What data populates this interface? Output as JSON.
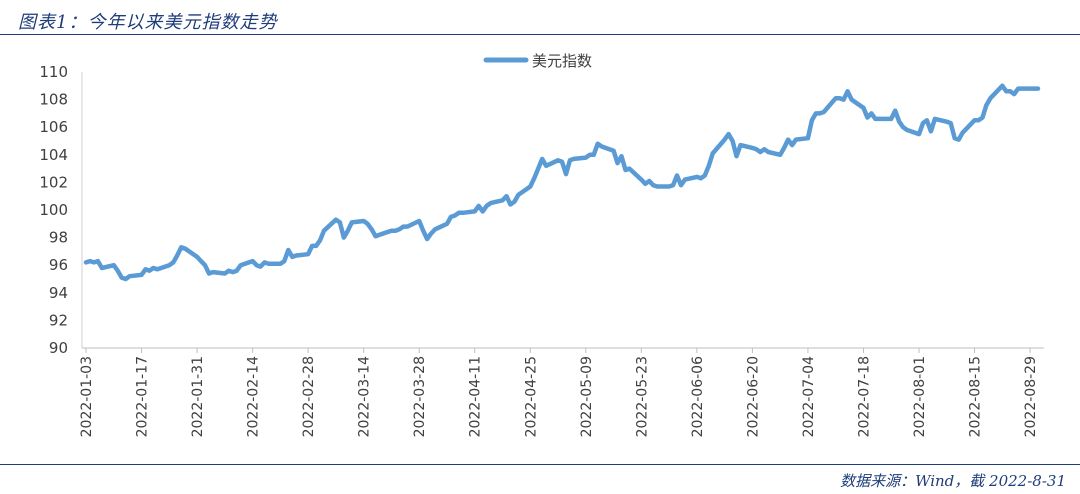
{
  "header": {
    "title": "图表1：今年以来美元指数走势"
  },
  "footer": {
    "source": "数据来源：Wind，截 2022-8-31"
  },
  "chart_data": {
    "type": "line",
    "title": "",
    "xlabel": "",
    "ylabel": "",
    "ylim": [
      90,
      110
    ],
    "yticks": [
      90,
      92,
      94,
      96,
      98,
      100,
      102,
      104,
      106,
      108,
      110
    ],
    "xticks": [
      "2022-01-03",
      "2022-01-17",
      "2022-01-31",
      "2022-02-14",
      "2022-02-28",
      "2022-03-14",
      "2022-03-28",
      "2022-04-11",
      "2022-04-25",
      "2022-05-09",
      "2022-05-23",
      "2022-06-06",
      "2022-06-20",
      "2022-07-04",
      "2022-07-18",
      "2022-08-01",
      "2022-08-15",
      "2022-08-29"
    ],
    "grid": false,
    "legend": "top-center",
    "color": "#5b9bd5",
    "series": [
      {
        "name": "美元指数",
        "points": [
          [
            "2022-01-03",
            96.2
          ],
          [
            "2022-01-04",
            96.3
          ],
          [
            "2022-01-05",
            96.2
          ],
          [
            "2022-01-06",
            96.3
          ],
          [
            "2022-01-07",
            95.8
          ],
          [
            "2022-01-10",
            96.0
          ],
          [
            "2022-01-11",
            95.6
          ],
          [
            "2022-01-12",
            95.1
          ],
          [
            "2022-01-13",
            95.0
          ],
          [
            "2022-01-14",
            95.2
          ],
          [
            "2022-01-17",
            95.3
          ],
          [
            "2022-01-18",
            95.7
          ],
          [
            "2022-01-19",
            95.6
          ],
          [
            "2022-01-20",
            95.8
          ],
          [
            "2022-01-21",
            95.7
          ],
          [
            "2022-01-24",
            96.0
          ],
          [
            "2022-01-25",
            96.2
          ],
          [
            "2022-01-26",
            96.7
          ],
          [
            "2022-01-27",
            97.3
          ],
          [
            "2022-01-28",
            97.2
          ],
          [
            "2022-01-31",
            96.6
          ],
          [
            "2022-02-01",
            96.3
          ],
          [
            "2022-02-02",
            96.0
          ],
          [
            "2022-02-03",
            95.4
          ],
          [
            "2022-02-04",
            95.5
          ],
          [
            "2022-02-07",
            95.4
          ],
          [
            "2022-02-08",
            95.6
          ],
          [
            "2022-02-09",
            95.5
          ],
          [
            "2022-02-10",
            95.6
          ],
          [
            "2022-02-11",
            96.0
          ],
          [
            "2022-02-14",
            96.3
          ],
          [
            "2022-02-15",
            96.0
          ],
          [
            "2022-02-16",
            95.9
          ],
          [
            "2022-02-17",
            96.2
          ],
          [
            "2022-02-18",
            96.1
          ],
          [
            "2022-02-21",
            96.1
          ],
          [
            "2022-02-22",
            96.3
          ],
          [
            "2022-02-23",
            97.1
          ],
          [
            "2022-02-24",
            96.6
          ],
          [
            "2022-02-25",
            96.7
          ],
          [
            "2022-02-28",
            96.8
          ],
          [
            "2022-03-01",
            97.4
          ],
          [
            "2022-03-02",
            97.4
          ],
          [
            "2022-03-03",
            97.8
          ],
          [
            "2022-03-04",
            98.5
          ],
          [
            "2022-03-07",
            99.3
          ],
          [
            "2022-03-08",
            99.1
          ],
          [
            "2022-03-09",
            98.0
          ],
          [
            "2022-03-10",
            98.5
          ],
          [
            "2022-03-11",
            99.1
          ],
          [
            "2022-03-14",
            99.2
          ],
          [
            "2022-03-15",
            99.0
          ],
          [
            "2022-03-16",
            98.6
          ],
          [
            "2022-03-17",
            98.1
          ],
          [
            "2022-03-18",
            98.2
          ],
          [
            "2022-03-21",
            98.5
          ],
          [
            "2022-03-22",
            98.5
          ],
          [
            "2022-03-23",
            98.6
          ],
          [
            "2022-03-24",
            98.8
          ],
          [
            "2022-03-25",
            98.8
          ],
          [
            "2022-03-28",
            99.2
          ],
          [
            "2022-03-29",
            98.5
          ],
          [
            "2022-03-30",
            97.9
          ],
          [
            "2022-03-31",
            98.3
          ],
          [
            "2022-04-01",
            98.6
          ],
          [
            "2022-04-04",
            99.0
          ],
          [
            "2022-04-05",
            99.5
          ],
          [
            "2022-04-06",
            99.6
          ],
          [
            "2022-04-07",
            99.8
          ],
          [
            "2022-04-08",
            99.8
          ],
          [
            "2022-04-11",
            99.9
          ],
          [
            "2022-04-12",
            100.3
          ],
          [
            "2022-04-13",
            99.9
          ],
          [
            "2022-04-14",
            100.3
          ],
          [
            "2022-04-15",
            100.5
          ],
          [
            "2022-04-18",
            100.7
          ],
          [
            "2022-04-19",
            101.0
          ],
          [
            "2022-04-20",
            100.4
          ],
          [
            "2022-04-21",
            100.6
          ],
          [
            "2022-04-22",
            101.1
          ],
          [
            "2022-04-25",
            101.7
          ],
          [
            "2022-04-26",
            102.3
          ],
          [
            "2022-04-27",
            103.0
          ],
          [
            "2022-04-28",
            103.7
          ],
          [
            "2022-04-29",
            103.2
          ],
          [
            "2022-05-02",
            103.6
          ],
          [
            "2022-05-03",
            103.5
          ],
          [
            "2022-05-04",
            102.6
          ],
          [
            "2022-05-05",
            103.6
          ],
          [
            "2022-05-06",
            103.7
          ],
          [
            "2022-05-09",
            103.8
          ],
          [
            "2022-05-10",
            104.0
          ],
          [
            "2022-05-11",
            104.0
          ],
          [
            "2022-05-12",
            104.8
          ],
          [
            "2022-05-13",
            104.6
          ],
          [
            "2022-05-16",
            104.3
          ],
          [
            "2022-05-17",
            103.4
          ],
          [
            "2022-05-18",
            103.9
          ],
          [
            "2022-05-19",
            102.9
          ],
          [
            "2022-05-20",
            103.0
          ],
          [
            "2022-05-23",
            102.2
          ],
          [
            "2022-05-24",
            101.9
          ],
          [
            "2022-05-25",
            102.1
          ],
          [
            "2022-05-26",
            101.8
          ],
          [
            "2022-05-27",
            101.7
          ],
          [
            "2022-05-30",
            101.7
          ],
          [
            "2022-05-31",
            101.8
          ],
          [
            "2022-06-01",
            102.5
          ],
          [
            "2022-06-02",
            101.8
          ],
          [
            "2022-06-03",
            102.2
          ],
          [
            "2022-06-06",
            102.4
          ],
          [
            "2022-06-07",
            102.3
          ],
          [
            "2022-06-08",
            102.5
          ],
          [
            "2022-06-09",
            103.2
          ],
          [
            "2022-06-10",
            104.1
          ],
          [
            "2022-06-13",
            105.1
          ],
          [
            "2022-06-14",
            105.5
          ],
          [
            "2022-06-15",
            105.0
          ],
          [
            "2022-06-16",
            103.9
          ],
          [
            "2022-06-17",
            104.7
          ],
          [
            "2022-06-20",
            104.5
          ],
          [
            "2022-06-21",
            104.4
          ],
          [
            "2022-06-22",
            104.2
          ],
          [
            "2022-06-23",
            104.4
          ],
          [
            "2022-06-24",
            104.2
          ],
          [
            "2022-06-27",
            104.0
          ],
          [
            "2022-06-28",
            104.5
          ],
          [
            "2022-06-29",
            105.1
          ],
          [
            "2022-06-30",
            104.7
          ],
          [
            "2022-07-01",
            105.1
          ],
          [
            "2022-07-04",
            105.2
          ],
          [
            "2022-07-05",
            106.5
          ],
          [
            "2022-07-06",
            107.0
          ],
          [
            "2022-07-07",
            107.0
          ],
          [
            "2022-07-08",
            107.1
          ],
          [
            "2022-07-11",
            108.1
          ],
          [
            "2022-07-12",
            108.1
          ],
          [
            "2022-07-13",
            108.0
          ],
          [
            "2022-07-14",
            108.6
          ],
          [
            "2022-07-15",
            108.0
          ],
          [
            "2022-07-18",
            107.4
          ],
          [
            "2022-07-19",
            106.7
          ],
          [
            "2022-07-20",
            107.0
          ],
          [
            "2022-07-21",
            106.6
          ],
          [
            "2022-07-22",
            106.6
          ],
          [
            "2022-07-25",
            106.6
          ],
          [
            "2022-07-26",
            107.2
          ],
          [
            "2022-07-27",
            106.4
          ],
          [
            "2022-07-28",
            106.0
          ],
          [
            "2022-07-29",
            105.8
          ],
          [
            "2022-08-01",
            105.5
          ],
          [
            "2022-08-02",
            106.3
          ],
          [
            "2022-08-03",
            106.5
          ],
          [
            "2022-08-04",
            105.7
          ],
          [
            "2022-08-05",
            106.6
          ],
          [
            "2022-08-08",
            106.4
          ],
          [
            "2022-08-09",
            106.3
          ],
          [
            "2022-08-10",
            105.2
          ],
          [
            "2022-08-11",
            105.1
          ],
          [
            "2022-08-12",
            105.6
          ],
          [
            "2022-08-15",
            106.5
          ],
          [
            "2022-08-16",
            106.5
          ],
          [
            "2022-08-17",
            106.7
          ],
          [
            "2022-08-18",
            107.6
          ],
          [
            "2022-08-19",
            108.1
          ],
          [
            "2022-08-22",
            109.0
          ],
          [
            "2022-08-23",
            108.6
          ],
          [
            "2022-08-24",
            108.6
          ],
          [
            "2022-08-25",
            108.4
          ],
          [
            "2022-08-26",
            108.8
          ],
          [
            "2022-08-29",
            108.8
          ],
          [
            "2022-08-30",
            108.8
          ],
          [
            "2022-08-31",
            108.8
          ]
        ]
      }
    ]
  }
}
